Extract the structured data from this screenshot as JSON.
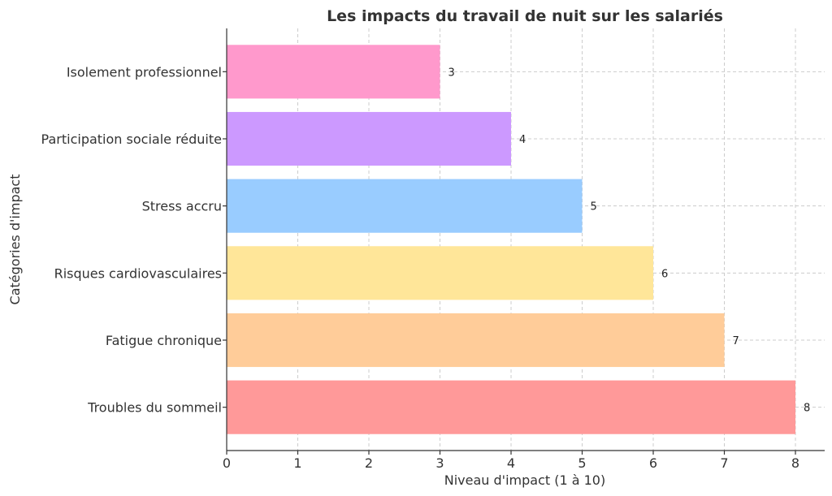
{
  "chart_data": {
    "type": "bar",
    "orientation": "horizontal",
    "title": "Les impacts du travail de nuit sur les salariés",
    "xlabel": "Niveau d'impact (1 à 10)",
    "ylabel": "Catégories d'impact",
    "xlim": [
      0,
      8.4
    ],
    "xticks": [
      "0",
      "1",
      "2",
      "3",
      "4",
      "5",
      "6",
      "7",
      "8"
    ],
    "grid": true,
    "categories": [
      "Troubles du sommeil",
      "Fatigue chronique",
      "Risques cardiovasculaires",
      "Stress accru",
      "Participation sociale réduite",
      "Isolement professionnel"
    ],
    "values": [
      8,
      7,
      6,
      5,
      4,
      3
    ],
    "value_labels": [
      "8",
      "7",
      "6",
      "5",
      "4",
      "3"
    ],
    "colors": [
      "#ff9999",
      "#ffcc99",
      "#ffe699",
      "#99ccff",
      "#cc99ff",
      "#ff99cc"
    ]
  }
}
